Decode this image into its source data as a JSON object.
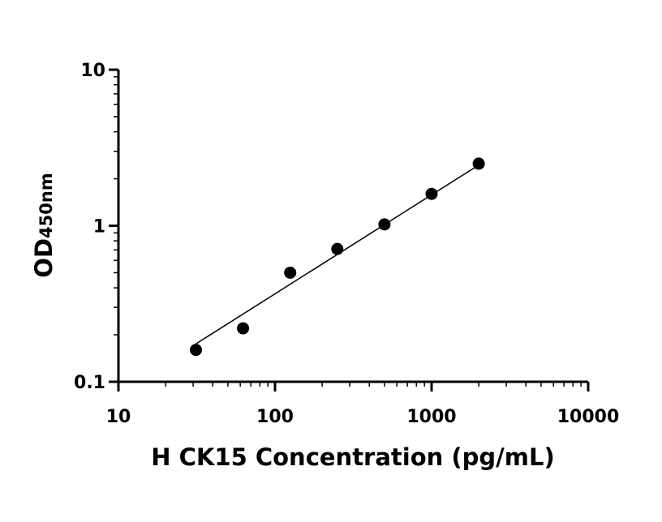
{
  "chart_data": {
    "type": "scatter",
    "title": "",
    "xlabel": "H CK15 Concentration (pg/mL)",
    "ylabel": "OD",
    "ylabel_subscript": "450nm",
    "x_scale": "log",
    "y_scale": "log",
    "xlim": [
      10,
      10000
    ],
    "ylim": [
      0.1,
      10
    ],
    "x_ticks": [
      10,
      100,
      1000,
      10000
    ],
    "x_tick_labels": [
      "10",
      "100",
      "1000",
      "10000"
    ],
    "y_ticks": [
      0.1,
      1,
      10
    ],
    "y_tick_labels": [
      "0.1",
      "1",
      "10"
    ],
    "grid": false,
    "legend": "none",
    "series": [
      {
        "x": [
          31.25,
          62.5,
          125,
          250,
          500,
          1000,
          2000
        ],
        "y": [
          0.16,
          0.22,
          0.5,
          0.71,
          1.02,
          1.6,
          2.5
        ]
      }
    ],
    "fit_line": {
      "x": [
        31.25,
        2000
      ],
      "y": [
        0.175,
        2.45
      ]
    },
    "colors": {
      "points": "#000000",
      "line": "#000000",
      "axis": "#000000"
    }
  }
}
